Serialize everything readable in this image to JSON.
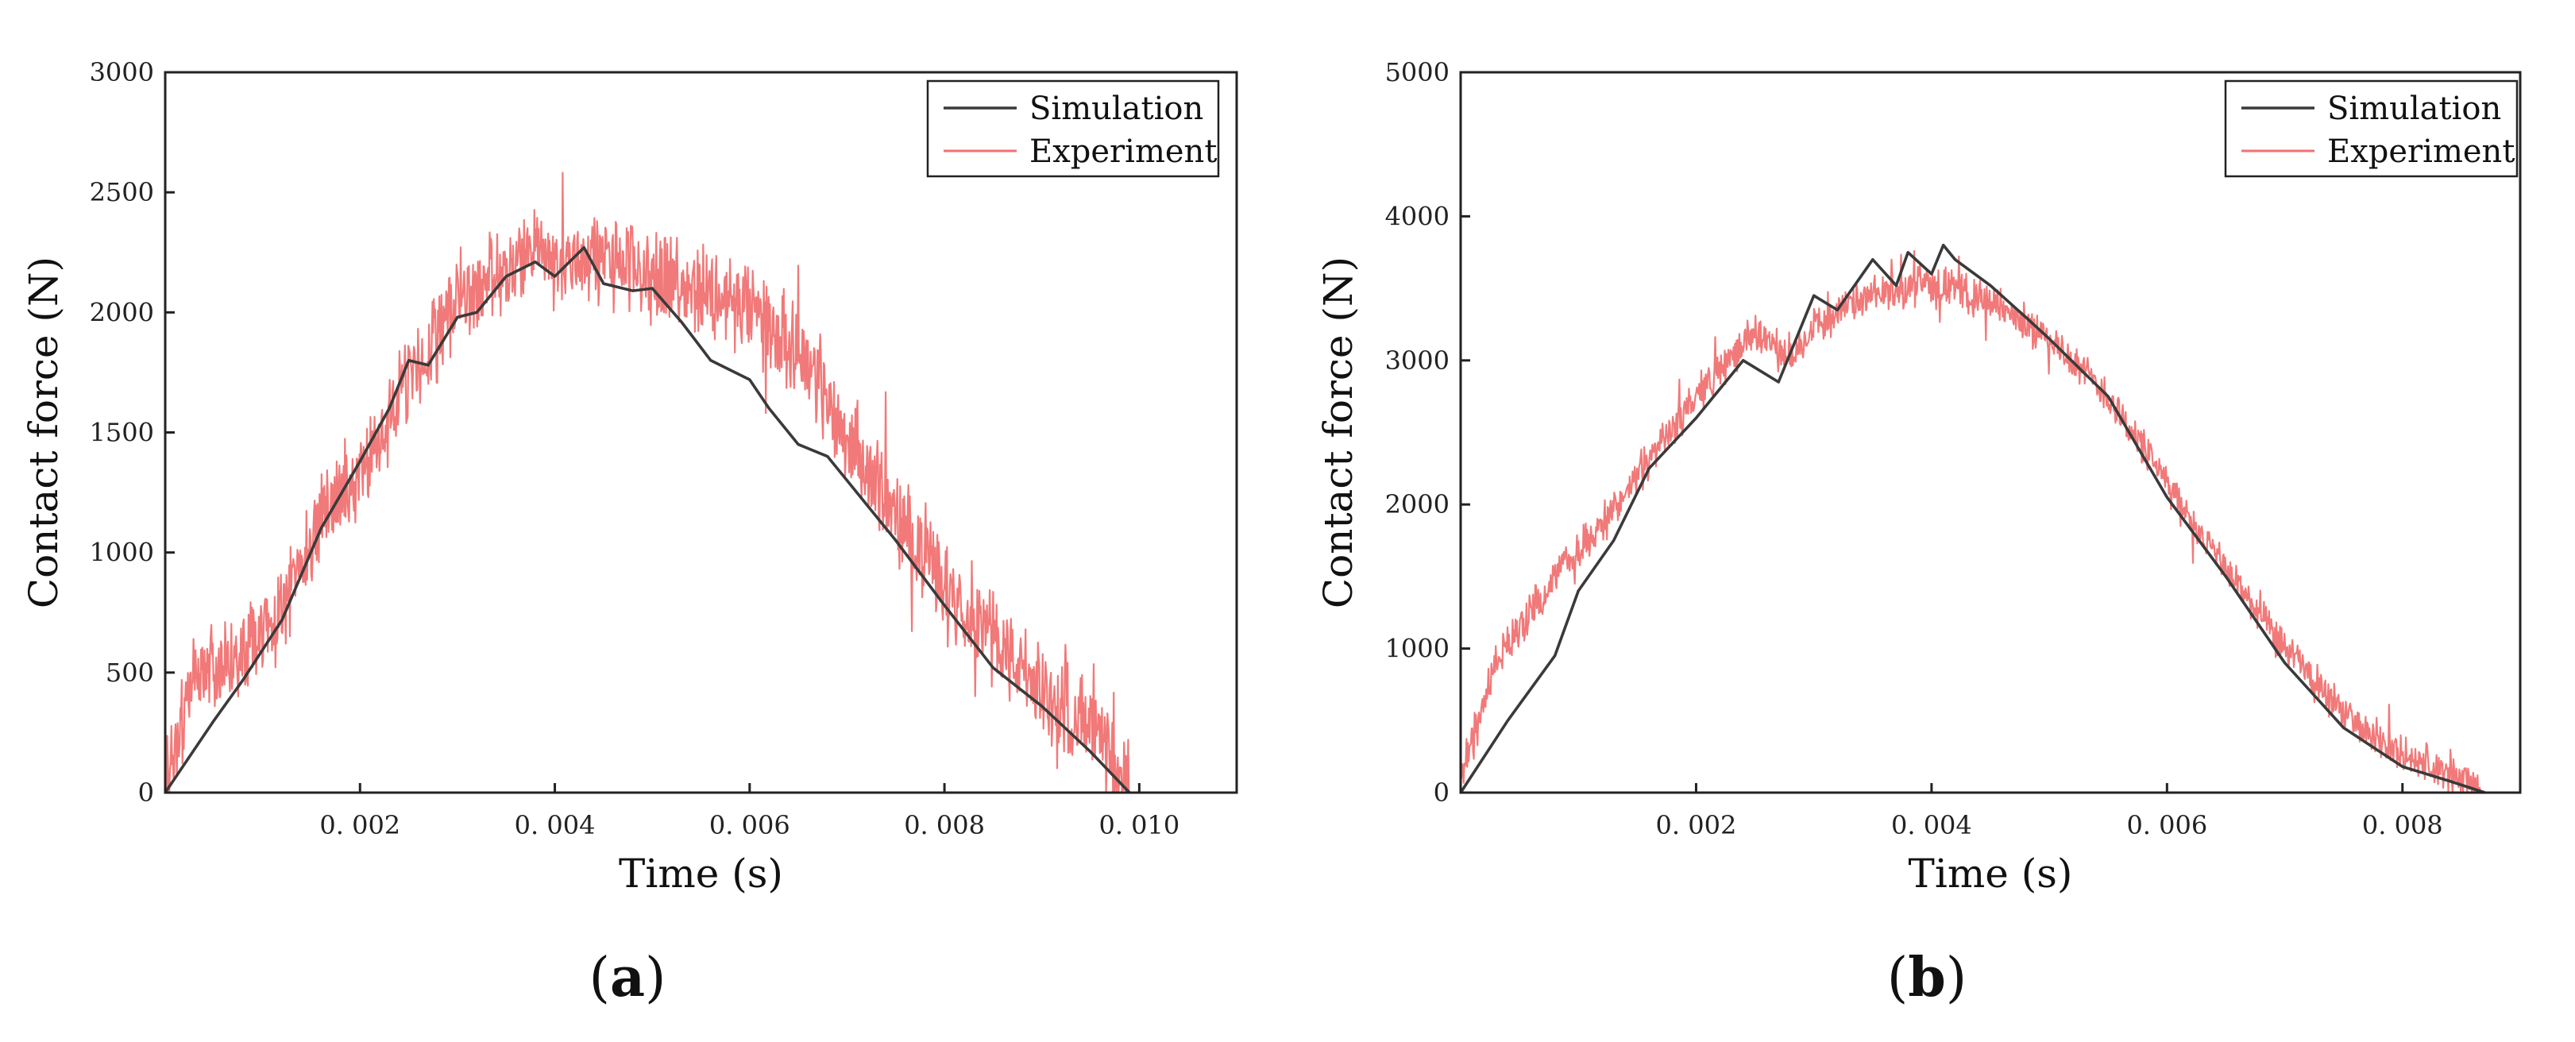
{
  "panels": [
    {
      "label_open": "(",
      "label_letter": "a",
      "label_close": ")"
    },
    {
      "label_open": "(",
      "label_letter": "b",
      "label_close": ")"
    }
  ],
  "colors": {
    "simulation": "#3a3a3a",
    "experiment": "#f07272"
  },
  "chart_data": [
    {
      "type": "line",
      "title": "",
      "xlabel": "Time (s)",
      "ylabel": "Contact force (N)",
      "xlim": [
        0,
        0.011
      ],
      "ylim": [
        0,
        3000
      ],
      "xticks": [
        0.002,
        0.004,
        0.006,
        0.008,
        0.01
      ],
      "xtick_labels": [
        "0. 002",
        "0. 004",
        "0. 006",
        "0. 008",
        "0. 010"
      ],
      "yticks": [
        0,
        500,
        1000,
        1500,
        2000,
        2500,
        3000
      ],
      "ytick_labels": [
        "0",
        "500",
        "1000",
        "1500",
        "2000",
        "2500",
        "3000"
      ],
      "legend": {
        "position": "top-right",
        "entries": [
          "Simulation",
          "Experiment"
        ]
      },
      "series": [
        {
          "name": "Simulation",
          "x": [
            0,
            0.0005,
            0.0008,
            0.0012,
            0.0016,
            0.002,
            0.0023,
            0.0025,
            0.0027,
            0.003,
            0.0032,
            0.0035,
            0.0038,
            0.004,
            0.0043,
            0.0045,
            0.0048,
            0.005,
            0.0053,
            0.0056,
            0.006,
            0.0062,
            0.0065,
            0.0068,
            0.007,
            0.0075,
            0.008,
            0.0085,
            0.009,
            0.0095,
            0.0099
          ],
          "y": [
            0,
            300,
            470,
            720,
            1100,
            1380,
            1600,
            1800,
            1780,
            1980,
            2000,
            2150,
            2210,
            2150,
            2270,
            2120,
            2090,
            2100,
            1960,
            1800,
            1720,
            1600,
            1450,
            1400,
            1300,
            1050,
            780,
            520,
            360,
            170,
            0
          ]
        },
        {
          "name": "Experiment",
          "x": [
            0,
            0.0003,
            0.0008,
            0.0012,
            0.0016,
            0.002,
            0.0025,
            0.003,
            0.0035,
            0.0038,
            0.004,
            0.0045,
            0.005,
            0.0055,
            0.006,
            0.0065,
            0.007,
            0.0075,
            0.008,
            0.0085,
            0.009,
            0.0095,
            0.0099
          ],
          "y": [
            0,
            480,
            560,
            760,
            1150,
            1320,
            1700,
            2050,
            2150,
            2280,
            2200,
            2230,
            2150,
            2100,
            2000,
            1860,
            1480,
            1150,
            880,
            650,
            420,
            260,
            0
          ],
          "noise": 160
        }
      ]
    },
    {
      "type": "line",
      "title": "",
      "xlabel": "Time (s)",
      "ylabel": "Contact force (N)",
      "xlim": [
        0,
        0.009
      ],
      "ylim": [
        0,
        5000
      ],
      "xticks": [
        0.002,
        0.004,
        0.006,
        0.008
      ],
      "xtick_labels": [
        "0. 002",
        "0. 004",
        "0. 006",
        "0. 008"
      ],
      "yticks": [
        0,
        1000,
        2000,
        3000,
        4000,
        5000
      ],
      "ytick_labels": [
        "0",
        "1000",
        "2000",
        "3000",
        "4000",
        "5000"
      ],
      "legend": {
        "position": "top-right",
        "entries": [
          "Simulation",
          "Experiment"
        ]
      },
      "series": [
        {
          "name": "Simulation",
          "x": [
            0,
            0.0004,
            0.0008,
            0.001,
            0.0013,
            0.0016,
            0.002,
            0.0024,
            0.0027,
            0.003,
            0.0032,
            0.0035,
            0.0037,
            0.0038,
            0.004,
            0.0041,
            0.0042,
            0.0045,
            0.0048,
            0.005,
            0.0055,
            0.006,
            0.0065,
            0.007,
            0.0075,
            0.008,
            0.0084,
            0.0087
          ],
          "y": [
            0,
            500,
            950,
            1400,
            1750,
            2250,
            2600,
            3000,
            2850,
            3450,
            3350,
            3700,
            3520,
            3750,
            3600,
            3800,
            3700,
            3520,
            3300,
            3150,
            2750,
            2050,
            1500,
            900,
            450,
            180,
            80,
            0
          ]
        },
        {
          "name": "Experiment",
          "x": [
            0,
            0.0003,
            0.0008,
            0.0012,
            0.0016,
            0.002,
            0.0025,
            0.0028,
            0.003,
            0.0035,
            0.004,
            0.0045,
            0.005,
            0.0055,
            0.006,
            0.0065,
            0.007,
            0.0075,
            0.008,
            0.0085,
            0.0087
          ],
          "y": [
            150,
            900,
            1500,
            1850,
            2300,
            2750,
            3200,
            3000,
            3250,
            3450,
            3550,
            3400,
            3150,
            2750,
            2150,
            1550,
            1000,
            550,
            250,
            100,
            0
          ],
          "noise": 110
        }
      ]
    }
  ]
}
